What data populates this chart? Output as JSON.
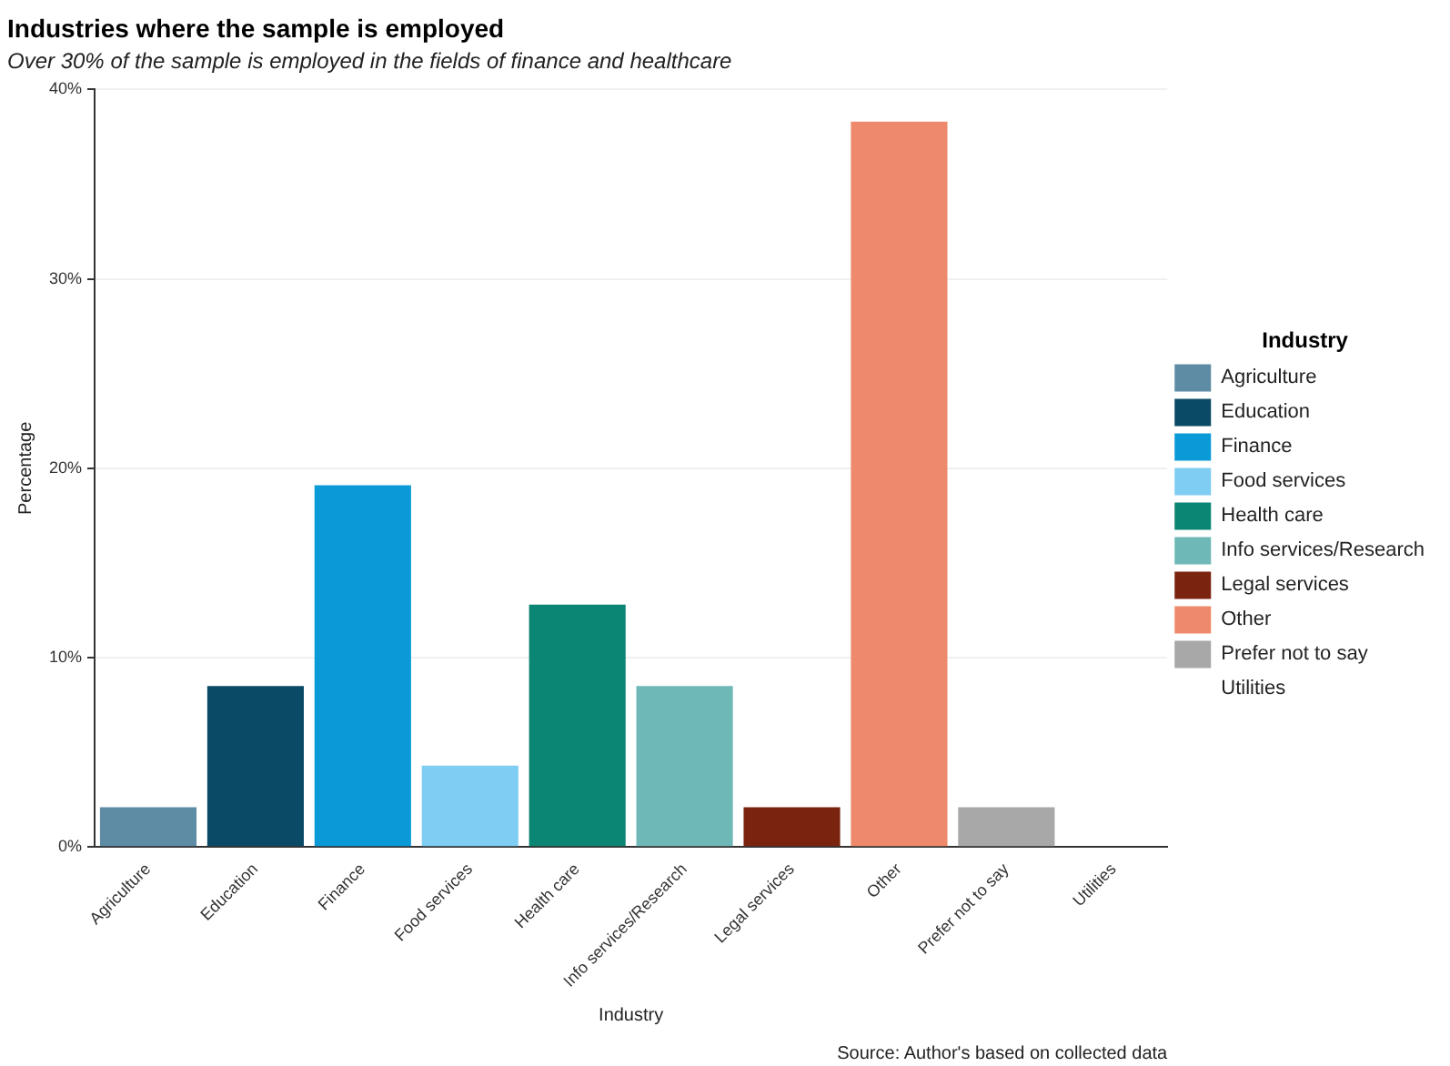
{
  "chart_data": {
    "type": "bar",
    "title": "Industries where the sample is employed",
    "subtitle": "Over 30% of the sample is employed in the fields of finance and healthcare",
    "xlabel": "Industry",
    "ylabel": "Percentage",
    "legend_title": "Industry",
    "categories": [
      "Agriculture",
      "Education",
      "Finance",
      "Food services",
      "Health care",
      "Info services/Research",
      "Legal services",
      "Other",
      "Prefer not to say",
      "Utilities"
    ],
    "series": [
      {
        "name": "Agriculture",
        "color": "#5f8ca5",
        "values": [
          2.1,
          null,
          null,
          null,
          null,
          null,
          null,
          null,
          null,
          null
        ]
      },
      {
        "name": "Education",
        "color": "#0b4a66",
        "values": [
          null,
          8.5,
          null,
          null,
          null,
          null,
          null,
          null,
          null,
          null
        ]
      },
      {
        "name": "Finance",
        "color": "#0a9ad8",
        "values": [
          null,
          null,
          19.1,
          null,
          null,
          null,
          null,
          null,
          null,
          null
        ]
      },
      {
        "name": "Food services",
        "color": "#7fcdf3",
        "values": [
          null,
          null,
          null,
          4.3,
          null,
          null,
          null,
          null,
          null,
          null
        ]
      },
      {
        "name": "Health care",
        "color": "#0b8574",
        "values": [
          null,
          null,
          null,
          null,
          12.8,
          null,
          null,
          null,
          null,
          null
        ]
      },
      {
        "name": "Info services/Research",
        "color": "#6fb8b8",
        "values": [
          null,
          null,
          null,
          null,
          null,
          8.5,
          null,
          null,
          null,
          null
        ]
      },
      {
        "name": "Legal services",
        "color": "#7a2410",
        "values": [
          null,
          null,
          null,
          null,
          null,
          null,
          2.1,
          null,
          null,
          null
        ]
      },
      {
        "name": "Other",
        "color": "#ee8a6b",
        "values": [
          null,
          null,
          null,
          null,
          null,
          null,
          null,
          38.3,
          null,
          null
        ]
      },
      {
        "name": "Prefer not to say",
        "color": "#a8a8a8",
        "values": [
          null,
          null,
          null,
          null,
          null,
          null,
          null,
          null,
          2.1,
          null
        ]
      },
      {
        "name": "Utilities",
        "values": [
          null,
          null,
          null,
          null,
          null,
          null,
          null,
          null,
          null,
          0
        ]
      }
    ],
    "ylim": [
      0,
      40
    ],
    "yticks": [
      {
        "value": 0,
        "label": "0%"
      },
      {
        "value": 10,
        "label": "10%"
      },
      {
        "value": 20,
        "label": "20%"
      },
      {
        "value": 30,
        "label": "30%"
      },
      {
        "value": 40,
        "label": "40%"
      }
    ],
    "grid": "y",
    "legend": "right",
    "annotations": [
      "Source: Author's based on collected data"
    ]
  }
}
